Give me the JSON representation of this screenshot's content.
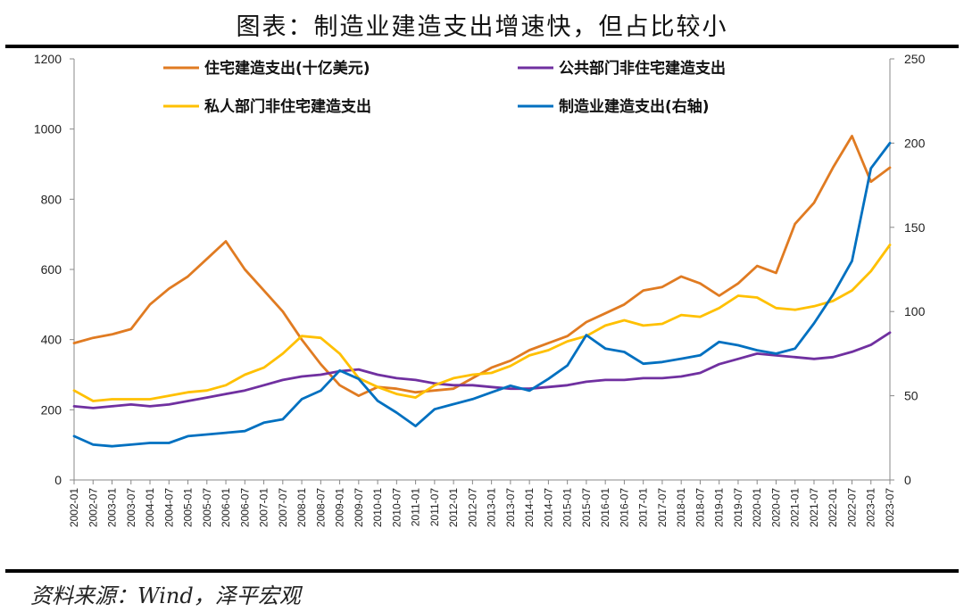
{
  "title": "图表：制造业建造支出增速快，但占比较小",
  "source": "资料来源：Wind，泽平宏观",
  "chart_data": {
    "type": "line",
    "x_labels": [
      "2002-01",
      "2002-07",
      "2003-01",
      "2003-07",
      "2004-01",
      "2004-07",
      "2005-01",
      "2005-07",
      "2006-01",
      "2006-07",
      "2007-01",
      "2007-07",
      "2008-01",
      "2008-07",
      "2009-01",
      "2009-07",
      "2010-01",
      "2010-07",
      "2011-01",
      "2011-07",
      "2012-01",
      "2012-07",
      "2013-01",
      "2013-07",
      "2014-01",
      "2014-07",
      "2015-01",
      "2015-07",
      "2016-01",
      "2016-07",
      "2017-01",
      "2017-07",
      "2018-01",
      "2018-07",
      "2019-01",
      "2019-07",
      "2020-01",
      "2020-07",
      "2021-01",
      "2021-07",
      "2022-01",
      "2022-07",
      "2023-01",
      "2023-07"
    ],
    "left_axis": {
      "min": 0,
      "max": 1200,
      "ticks": [
        0,
        200,
        400,
        600,
        800,
        1000,
        1200
      ]
    },
    "right_axis": {
      "min": 0,
      "max": 250,
      "ticks": [
        0,
        50,
        100,
        150,
        200,
        250
      ]
    },
    "series": [
      {
        "name": "住宅建造支出(十亿美元)",
        "axis": "left",
        "color": "#E07B22",
        "values": [
          390,
          405,
          415,
          430,
          500,
          545,
          580,
          630,
          680,
          600,
          540,
          480,
          400,
          330,
          270,
          240,
          265,
          260,
          250,
          255,
          260,
          290,
          320,
          340,
          370,
          390,
          410,
          450,
          475,
          500,
          540,
          550,
          580,
          560,
          525,
          560,
          610,
          590,
          730,
          790,
          890,
          980,
          850,
          890
        ]
      },
      {
        "name": "公共部门非住宅建造支出",
        "axis": "left",
        "color": "#7030A0",
        "values": [
          210,
          205,
          210,
          215,
          210,
          215,
          225,
          235,
          245,
          255,
          270,
          285,
          295,
          300,
          310,
          315,
          300,
          290,
          285,
          275,
          270,
          270,
          265,
          260,
          260,
          265,
          270,
          280,
          285,
          285,
          290,
          290,
          295,
          305,
          330,
          345,
          360,
          355,
          350,
          345,
          350,
          365,
          385,
          420
        ]
      },
      {
        "name": "私人部门非住宅建造支出",
        "axis": "left",
        "color": "#FFC000",
        "values": [
          255,
          225,
          230,
          230,
          230,
          240,
          250,
          255,
          270,
          300,
          320,
          360,
          410,
          405,
          360,
          290,
          265,
          245,
          235,
          270,
          290,
          300,
          305,
          325,
          355,
          370,
          395,
          410,
          440,
          455,
          440,
          445,
          470,
          465,
          490,
          525,
          520,
          490,
          485,
          495,
          510,
          540,
          595,
          670
        ]
      },
      {
        "name": "制造业建造支出(右轴)",
        "axis": "right",
        "color": "#0070C0",
        "values": [
          26,
          21,
          20,
          21,
          22,
          22,
          26,
          27,
          28,
          29,
          34,
          36,
          48,
          53,
          65,
          60,
          47,
          40,
          32,
          42,
          45,
          48,
          52,
          56,
          53,
          60,
          68,
          86,
          78,
          76,
          69,
          70,
          72,
          74,
          82,
          80,
          77,
          75,
          78,
          93,
          110,
          130,
          185,
          200
        ]
      }
    ]
  }
}
